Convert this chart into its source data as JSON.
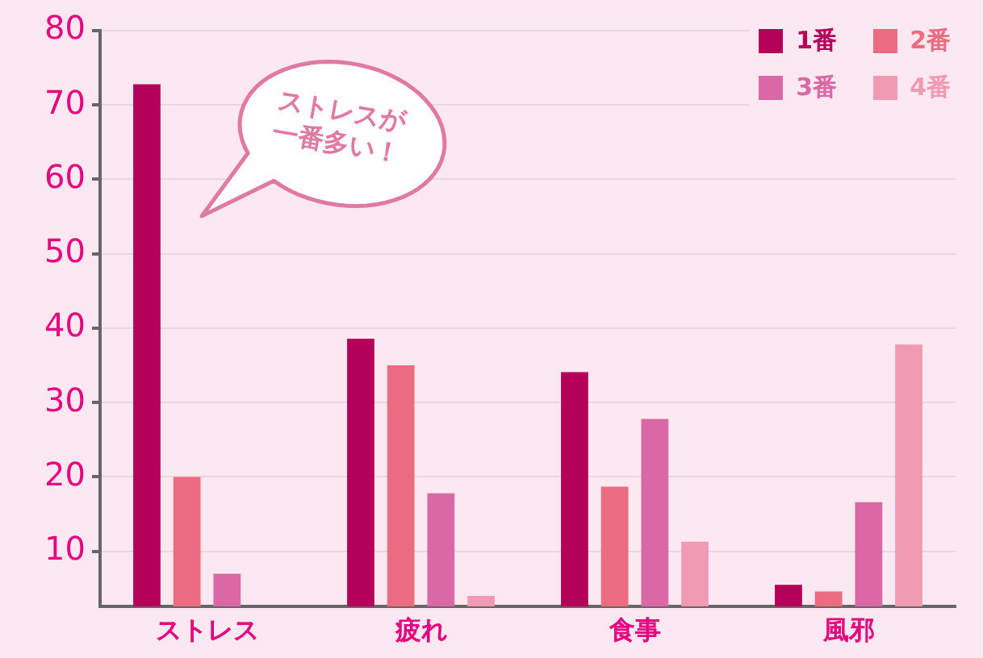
{
  "chart_data": {
    "type": "bar",
    "categories": [
      "ストレス",
      "疲れ",
      "食事",
      "風邪"
    ],
    "series": [
      {
        "name": "1番",
        "color": "#b5005a",
        "values": [
          72.8,
          38.6,
          34.1,
          5.5
        ]
      },
      {
        "name": "2番",
        "color": "#eb6b80",
        "values": [
          20.0,
          35.0,
          18.7,
          4.6
        ]
      },
      {
        "name": "3番",
        "color": "#db68a6",
        "values": [
          7.0,
          17.8,
          27.8,
          16.6
        ]
      },
      {
        "name": "4番",
        "color": "#f09bb3",
        "values": [
          null,
          4.0,
          11.3,
          37.8
        ]
      }
    ],
    "ylim": [
      2.6,
      80
    ],
    "yticks": [
      10,
      20,
      30,
      40,
      50,
      60,
      70,
      80
    ],
    "grid": "y",
    "legend": "top right",
    "annotations": [
      "ストレスが一番多い！"
    ]
  }
}
